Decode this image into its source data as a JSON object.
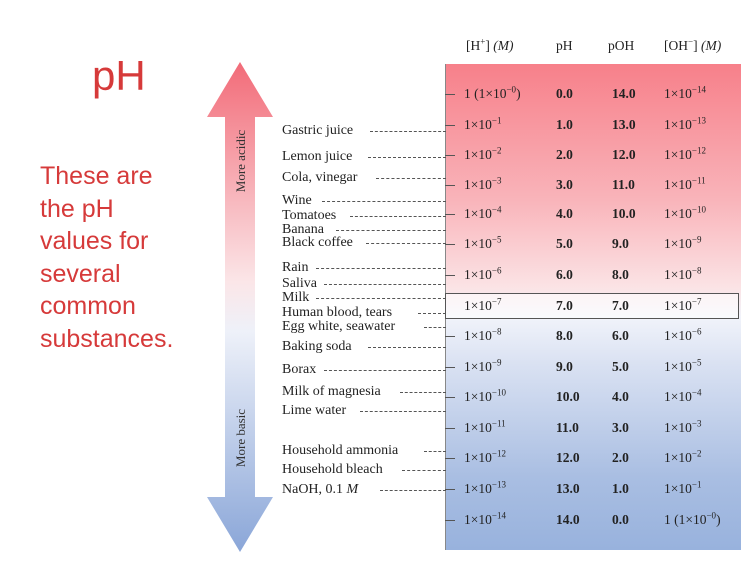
{
  "title": "pH",
  "description_lines": [
    "These are",
    "the pH",
    "values for",
    "several",
    "common",
    "substances."
  ],
  "arrow": {
    "top_label": "More acidic",
    "bottom_label": "More basic"
  },
  "headers": {
    "h_conc": "[H",
    "h_conc_unit": "(M)",
    "ph": "pH",
    "poh": "pOH",
    "oh_conc": "[OH",
    "oh_conc_unit": "(M)"
  },
  "rows": [
    {
      "h": "1 (1×10",
      "h_exp": "−0",
      "h_tail": ")",
      "ph": "0.0",
      "poh": "14.0",
      "oh": "1×10",
      "oh_exp": "−14"
    },
    {
      "h": "1×10",
      "h_exp": "−1",
      "ph": "1.0",
      "poh": "13.0",
      "oh": "1×10",
      "oh_exp": "−13"
    },
    {
      "h": "1×10",
      "h_exp": "−2",
      "ph": "2.0",
      "poh": "12.0",
      "oh": "1×10",
      "oh_exp": "−12"
    },
    {
      "h": "1×10",
      "h_exp": "−3",
      "ph": "3.0",
      "poh": "11.0",
      "oh": "1×10",
      "oh_exp": "−11"
    },
    {
      "h": "1×10",
      "h_exp": "−4",
      "ph": "4.0",
      "poh": "10.0",
      "oh": "1×10",
      "oh_exp": "−10"
    },
    {
      "h": "1×10",
      "h_exp": "−5",
      "ph": "5.0",
      "poh": "9.0",
      "oh": "1×10",
      "oh_exp": "−9"
    },
    {
      "h": "1×10",
      "h_exp": "−6",
      "ph": "6.0",
      "poh": "8.0",
      "oh": "1×10",
      "oh_exp": "−8"
    },
    {
      "h": "1×10",
      "h_exp": "−7",
      "ph": "7.0",
      "poh": "7.0",
      "oh": "1×10",
      "oh_exp": "−7"
    },
    {
      "h": "1×10",
      "h_exp": "−8",
      "ph": "8.0",
      "poh": "6.0",
      "oh": "1×10",
      "oh_exp": "−6"
    },
    {
      "h": "1×10",
      "h_exp": "−9",
      "ph": "9.0",
      "poh": "5.0",
      "oh": "1×10",
      "oh_exp": "−5"
    },
    {
      "h": "1×10",
      "h_exp": "−10",
      "ph": "10.0",
      "poh": "4.0",
      "oh": "1×10",
      "oh_exp": "−4"
    },
    {
      "h": "1×10",
      "h_exp": "−11",
      "ph": "11.0",
      "poh": "3.0",
      "oh": "1×10",
      "oh_exp": "−3"
    },
    {
      "h": "1×10",
      "h_exp": "−12",
      "ph": "12.0",
      "poh": "2.0",
      "oh": "1×10",
      "oh_exp": "−2"
    },
    {
      "h": "1×10",
      "h_exp": "−13",
      "ph": "13.0",
      "poh": "1.0",
      "oh": "1×10",
      "oh_exp": "−1"
    },
    {
      "h": "1×10",
      "h_exp": "−14",
      "ph": "14.0",
      "poh": "0.0",
      "oh": "1 (1×10",
      "oh_exp": "−0",
      "oh_tail": ")"
    }
  ],
  "substances": [
    "Gastric juice",
    "Lemon juice",
    "Cola, vinegar",
    "Wine",
    "Tomatoes",
    "Banana",
    "Black coffee",
    "Rain",
    "Saliva",
    "Milk",
    "Human blood, tears",
    "Egg white, seawater",
    "Baking soda",
    "Borax",
    "Milk of magnesia",
    "Lime water",
    "Household ammonia",
    "Household bleach",
    "NaOH, 0.1",
    "M"
  ],
  "colors": {
    "title_red": "#d63a3a",
    "acid_pink": "#f7808a",
    "base_blue": "#98b2dd"
  }
}
